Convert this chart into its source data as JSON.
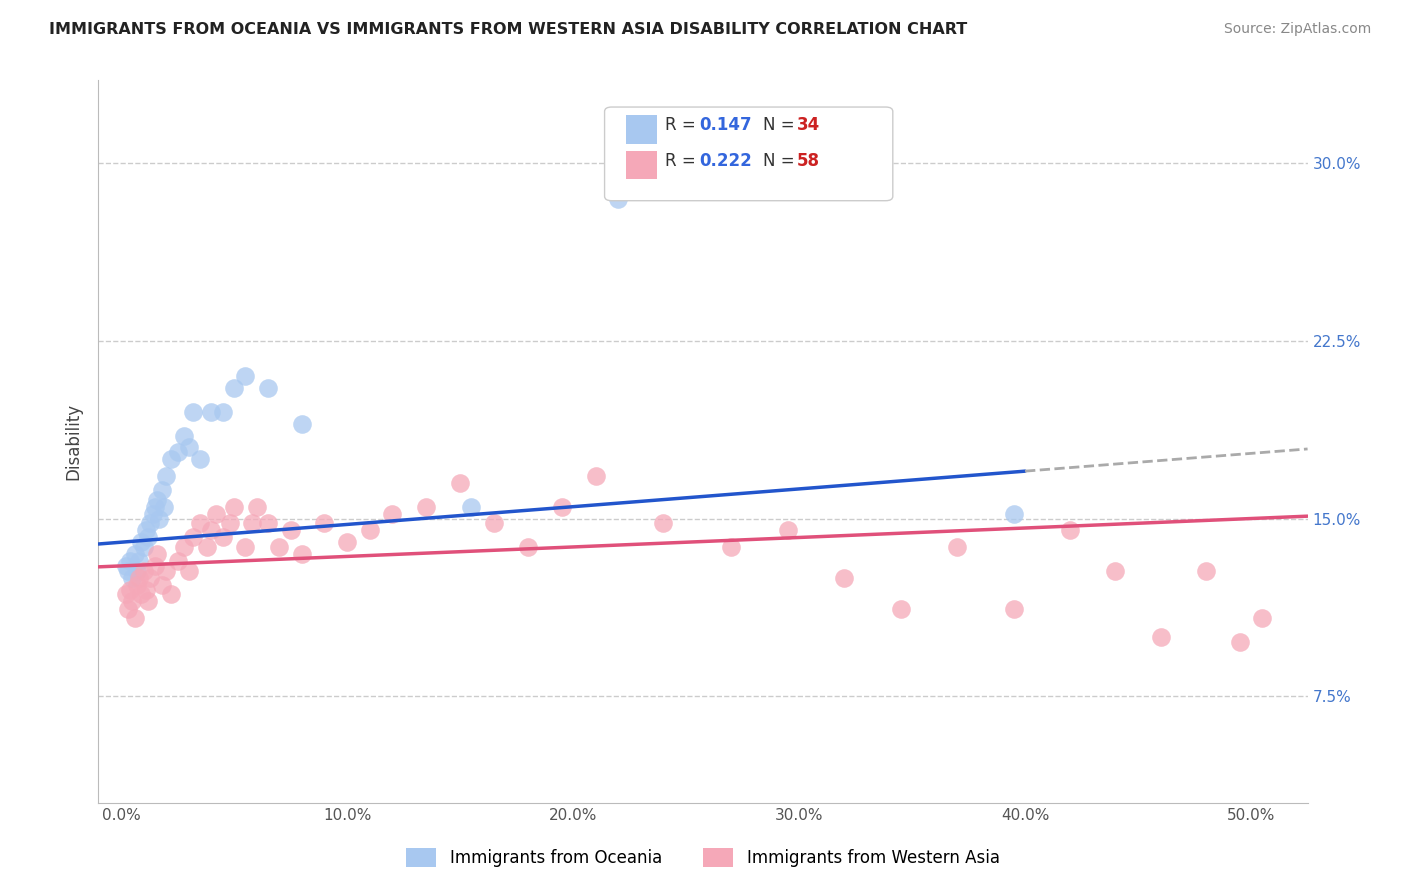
{
  "title": "IMMIGRANTS FROM OCEANIA VS IMMIGRANTS FROM WESTERN ASIA DISABILITY CORRELATION CHART",
  "source": "Source: ZipAtlas.com",
  "ylabel": "Disability",
  "y_tick_positions": [
    0.075,
    0.15,
    0.225,
    0.3
  ],
  "y_tick_labels": [
    "7.5%",
    "15.0%",
    "22.5%",
    "30.0%"
  ],
  "x_tick_positions": [
    0.0,
    0.1,
    0.2,
    0.3,
    0.4,
    0.5
  ],
  "x_tick_labels": [
    "0.0%",
    "10.0%",
    "20.0%",
    "30.0%",
    "40.0%",
    "50.0%"
  ],
  "xlim": [
    -0.01,
    0.525
  ],
  "ylim": [
    0.03,
    0.335
  ],
  "legend_R1": "0.147",
  "legend_N1": "34",
  "legend_R2": "0.222",
  "legend_N2": "58",
  "legend_label1": "Immigrants from Oceania",
  "legend_label2": "Immigrants from Western Asia",
  "color_blue": "#A8C8F0",
  "color_pink": "#F5A8B8",
  "line_color_blue": "#2255CC",
  "line_color_pink": "#E0507A",
  "dashed_line_color": "#AAAAAA",
  "scatter_blue_x": [
    0.002,
    0.003,
    0.004,
    0.005,
    0.006,
    0.007,
    0.008,
    0.009,
    0.01,
    0.011,
    0.012,
    0.013,
    0.014,
    0.015,
    0.016,
    0.017,
    0.018,
    0.019,
    0.02,
    0.022,
    0.025,
    0.028,
    0.03,
    0.032,
    0.035,
    0.04,
    0.045,
    0.05,
    0.055,
    0.065,
    0.08,
    0.155,
    0.22,
    0.395
  ],
  "scatter_blue_y": [
    0.13,
    0.128,
    0.132,
    0.125,
    0.135,
    0.128,
    0.132,
    0.14,
    0.138,
    0.145,
    0.142,
    0.148,
    0.152,
    0.155,
    0.158,
    0.15,
    0.162,
    0.155,
    0.168,
    0.175,
    0.178,
    0.185,
    0.18,
    0.195,
    0.175,
    0.195,
    0.195,
    0.205,
    0.21,
    0.205,
    0.19,
    0.155,
    0.285,
    0.152
  ],
  "scatter_pink_x": [
    0.002,
    0.003,
    0.004,
    0.005,
    0.006,
    0.007,
    0.008,
    0.009,
    0.01,
    0.011,
    0.012,
    0.013,
    0.015,
    0.016,
    0.018,
    0.02,
    0.022,
    0.025,
    0.028,
    0.03,
    0.032,
    0.035,
    0.038,
    0.04,
    0.042,
    0.045,
    0.048,
    0.05,
    0.055,
    0.058,
    0.06,
    0.065,
    0.07,
    0.075,
    0.08,
    0.09,
    0.1,
    0.11,
    0.12,
    0.135,
    0.15,
    0.165,
    0.18,
    0.195,
    0.21,
    0.24,
    0.27,
    0.295,
    0.32,
    0.345,
    0.37,
    0.395,
    0.42,
    0.44,
    0.46,
    0.48,
    0.495,
    0.505
  ],
  "scatter_pink_y": [
    0.118,
    0.112,
    0.12,
    0.115,
    0.108,
    0.122,
    0.125,
    0.118,
    0.128,
    0.12,
    0.115,
    0.125,
    0.13,
    0.135,
    0.122,
    0.128,
    0.118,
    0.132,
    0.138,
    0.128,
    0.142,
    0.148,
    0.138,
    0.145,
    0.152,
    0.142,
    0.148,
    0.155,
    0.138,
    0.148,
    0.155,
    0.148,
    0.138,
    0.145,
    0.135,
    0.148,
    0.14,
    0.145,
    0.152,
    0.155,
    0.165,
    0.148,
    0.138,
    0.155,
    0.168,
    0.148,
    0.138,
    0.145,
    0.125,
    0.112,
    0.138,
    0.112,
    0.145,
    0.128,
    0.1,
    0.128,
    0.098,
    0.108
  ]
}
